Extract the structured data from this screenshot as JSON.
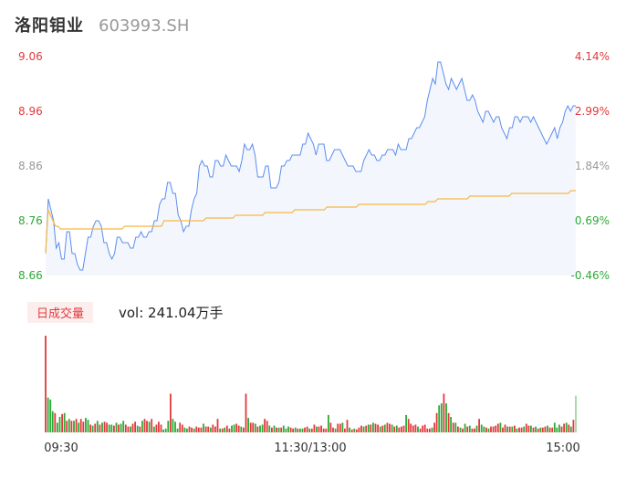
{
  "header": {
    "name": "洛阳钼业",
    "code": "603993.SH"
  },
  "vol_panel": {
    "tab_label": "日成交量",
    "vol_label": "vol: 241.04万手"
  },
  "colors": {
    "up": "#e4393c",
    "down": "#2bab35",
    "price_line": "#5b8def",
    "avg_line": "#f5b942",
    "neutral_text": "#999999"
  },
  "chart_data": [
    {
      "type": "line",
      "x_ticks": [
        "09:30",
        "11:30/13:00",
        "15:00"
      ],
      "ylim": [
        8.66,
        9.06
      ],
      "y_ticks_left": [
        "9.06",
        "8.96",
        "8.86",
        "8.76",
        "8.66"
      ],
      "y_ticks_right": [
        "4.14%",
        "2.99%",
        "1.84%",
        "0.69%",
        "-0.46%"
      ],
      "series": [
        {
          "key": "price",
          "values": [
            8.7,
            8.8,
            8.78,
            8.76,
            8.71,
            8.72,
            8.69,
            8.69,
            8.74,
            8.74,
            8.7,
            8.7,
            8.68,
            8.67,
            8.67,
            8.7,
            8.73,
            8.73,
            8.75,
            8.76,
            8.76,
            8.75,
            8.72,
            8.72,
            8.7,
            8.69,
            8.7,
            8.73,
            8.73,
            8.72,
            8.72,
            8.72,
            8.71,
            8.71,
            8.73,
            8.73,
            8.74,
            8.73,
            8.73,
            8.74,
            8.74,
            8.76,
            8.76,
            8.79,
            8.8,
            8.8,
            8.83,
            8.83,
            8.81,
            8.81,
            8.77,
            8.76,
            8.74,
            8.75,
            8.75,
            8.78,
            8.8,
            8.81,
            8.86,
            8.87,
            8.86,
            8.86,
            8.84,
            8.84,
            8.87,
            8.87,
            8.86,
            8.86,
            8.88,
            8.87,
            8.86,
            8.86,
            8.86,
            8.85,
            8.87,
            8.9,
            8.89,
            8.89,
            8.9,
            8.88,
            8.84,
            8.84,
            8.84,
            8.86,
            8.86,
            8.82,
            8.82,
            8.82,
            8.83,
            8.86,
            8.86,
            8.87,
            8.87,
            8.88,
            8.88,
            8.88,
            8.88,
            8.9,
            8.9,
            8.92,
            8.91,
            8.9,
            8.88,
            8.9,
            8.9,
            8.9,
            8.87,
            8.87,
            8.88,
            8.89,
            8.89,
            8.89,
            8.88,
            8.87,
            8.86,
            8.86,
            8.86,
            8.85,
            8.85,
            8.85,
            8.87,
            8.88,
            8.89,
            8.88,
            8.88,
            8.87,
            8.87,
            8.88,
            8.88,
            8.89,
            8.89,
            8.89,
            8.88,
            8.9,
            8.89,
            8.89,
            8.89,
            8.91,
            8.91,
            8.92,
            8.93,
            8.93,
            8.94,
            8.95,
            8.98,
            9.0,
            9.02,
            9.01,
            9.05,
            9.05,
            9.03,
            9.01,
            9.0,
            9.02,
            9.01,
            9.0,
            9.01,
            9.02,
            9.0,
            8.98,
            8.98,
            8.99,
            8.98,
            8.96,
            8.95,
            8.94,
            8.96,
            8.96,
            8.95,
            8.94,
            8.95,
            8.95,
            8.93,
            8.92,
            8.91,
            8.93,
            8.93,
            8.95,
            8.95,
            8.94,
            8.95,
            8.95,
            8.95,
            8.94,
            8.95,
            8.94,
            8.93,
            8.92,
            8.91,
            8.9,
            8.91,
            8.92,
            8.93,
            8.91,
            8.93,
            8.94,
            8.96,
            8.97,
            8.96,
            8.97,
            8.97
          ]
        },
        {
          "key": "avg",
          "values": [
            8.7,
            8.78,
            8.77,
            8.76,
            8.75,
            8.75,
            8.745,
            8.745,
            8.745,
            8.745,
            8.745,
            8.745,
            8.745,
            8.745,
            8.745,
            8.745,
            8.745,
            8.745,
            8.745,
            8.745,
            8.745,
            8.745,
            8.745,
            8.745,
            8.745,
            8.745,
            8.745,
            8.745,
            8.745,
            8.745,
            8.745,
            8.745,
            8.75,
            8.75,
            8.75,
            8.75,
            8.75,
            8.75,
            8.75,
            8.75,
            8.75,
            8.75,
            8.75,
            8.75,
            8.75,
            8.75,
            8.75,
            8.75,
            8.76,
            8.76,
            8.76,
            8.76,
            8.76,
            8.76,
            8.76,
            8.76,
            8.76,
            8.76,
            8.76,
            8.76,
            8.76,
            8.76,
            8.76,
            8.76,
            8.76,
            8.765,
            8.765,
            8.765,
            8.765,
            8.765,
            8.765,
            8.765,
            8.765,
            8.765,
            8.765,
            8.765,
            8.765,
            8.77,
            8.77,
            8.77,
            8.77,
            8.77,
            8.77,
            8.77,
            8.77,
            8.77,
            8.77,
            8.77,
            8.77,
            8.775,
            8.775,
            8.775,
            8.775,
            8.775,
            8.775,
            8.775,
            8.775,
            8.775,
            8.775,
            8.775,
            8.775,
            8.78,
            8.78,
            8.78,
            8.78,
            8.78,
            8.78,
            8.78,
            8.78,
            8.78,
            8.78,
            8.78,
            8.78,
            8.78,
            8.785,
            8.785,
            8.785,
            8.785,
            8.785,
            8.785,
            8.785,
            8.785,
            8.785,
            8.785,
            8.785,
            8.785,
            8.785,
            8.79,
            8.79,
            8.79,
            8.79,
            8.79,
            8.79,
            8.79,
            8.79,
            8.79,
            8.79,
            8.79,
            8.79,
            8.79,
            8.79,
            8.79,
            8.79,
            8.79,
            8.79,
            8.79,
            8.79,
            8.79,
            8.79,
            8.79,
            8.79,
            8.79,
            8.79,
            8.79,
            8.79,
            8.795,
            8.795,
            8.795,
            8.795,
            8.8,
            8.8,
            8.8,
            8.8,
            8.8,
            8.8,
            8.8,
            8.8,
            8.8,
            8.8,
            8.8,
            8.8,
            8.8,
            8.805,
            8.805,
            8.805,
            8.805,
            8.805,
            8.805,
            8.805,
            8.805,
            8.805,
            8.805,
            8.805,
            8.805,
            8.805,
            8.805,
            8.805,
            8.805,
            8.805,
            8.81,
            8.81,
            8.81,
            8.81,
            8.81,
            8.81,
            8.81,
            8.81,
            8.81,
            8.81,
            8.81,
            8.81,
            8.81,
            8.81,
            8.81,
            8.81,
            8.81,
            8.81,
            8.81,
            8.81,
            8.81,
            8.81,
            8.81,
            8.81,
            8.815,
            8.815,
            8.815
          ]
        }
      ]
    },
    {
      "type": "bar",
      "series": [
        {
          "key": "volume",
          "values": [
            100,
            36,
            34,
            22,
            20,
            10,
            16,
            19,
            20,
            12,
            14,
            12,
            12,
            14,
            10,
            14,
            11,
            15,
            13,
            8,
            7,
            9,
            12,
            8,
            10,
            11,
            10,
            8,
            8,
            7,
            10,
            8,
            9,
            12,
            8,
            6,
            6,
            9,
            11,
            7,
            6,
            12,
            14,
            12,
            11,
            14,
            6,
            8,
            11,
            8,
            3,
            4,
            12,
            40,
            14,
            11,
            4,
            10,
            8,
            5,
            4,
            6,
            5,
            4,
            6,
            5,
            5,
            9,
            6,
            6,
            5,
            8,
            6,
            14,
            4,
            4,
            5,
            7,
            4,
            7,
            8,
            9,
            7,
            6,
            5,
            40,
            15,
            10,
            10,
            9,
            6,
            7,
            8,
            14,
            12,
            7,
            5,
            7,
            5,
            5,
            5,
            7,
            4,
            6,
            5,
            4,
            5,
            4,
            4,
            4,
            5,
            6,
            4,
            4,
            8,
            6,
            6,
            7,
            4,
            4,
            18,
            10,
            5,
            4,
            9,
            9,
            10,
            4,
            13,
            5,
            3,
            4,
            3,
            5,
            7,
            6,
            7,
            8,
            8,
            10,
            9,
            8,
            6,
            7,
            8,
            10,
            9,
            8,
            6,
            7,
            5,
            6,
            7,
            18,
            14,
            9,
            7,
            8,
            6,
            4,
            7,
            8,
            4,
            4,
            5,
            10,
            20,
            28,
            30,
            40,
            30,
            20,
            16,
            10,
            10,
            6,
            5,
            4,
            9,
            6,
            7,
            4,
            4,
            7,
            14,
            8,
            6,
            5,
            4,
            6,
            6,
            7,
            9,
            10,
            5,
            8,
            6,
            6,
            6,
            7,
            4,
            5,
            5,
            6,
            9,
            7,
            7,
            5,
            6,
            4,
            5,
            5,
            6,
            7,
            5,
            5,
            10,
            5,
            8,
            6,
            9,
            10,
            8,
            6,
            13,
            38
          ]
        },
        {
          "key": "direction",
          "values": [
            1,
            -1,
            -1,
            -1,
            1,
            -1,
            -1,
            1,
            -1,
            1,
            -1,
            1,
            -1,
            1,
            -1,
            1,
            1,
            -1,
            -1,
            1,
            -1,
            1,
            -1,
            1,
            -1,
            1,
            1,
            -1,
            -1,
            1,
            -1,
            1,
            -1,
            -1,
            1,
            1,
            -1,
            1,
            1,
            -1,
            1,
            -1,
            1,
            1,
            -1,
            1,
            -1,
            1,
            1,
            1,
            -1,
            -1,
            -1,
            1,
            -1,
            -1,
            -1,
            1,
            1,
            -1,
            -1,
            1,
            1,
            -1,
            1,
            1,
            1,
            -1,
            1,
            1,
            -1,
            1,
            1,
            1,
            -1,
            1,
            -1,
            1,
            1,
            -1,
            -1,
            1,
            1,
            -1,
            1,
            1,
            -1,
            1,
            1,
            -1,
            1,
            -1,
            -1,
            1,
            1,
            -1,
            1,
            -1,
            1,
            -1,
            1,
            -1,
            -1,
            -1,
            1,
            1,
            -1,
            1,
            -1,
            -1,
            1,
            1,
            -1,
            1,
            1,
            -1,
            1,
            1,
            1,
            1,
            -1,
            1,
            1,
            -1,
            1,
            1,
            -1,
            1,
            1,
            -1,
            1,
            -1,
            1,
            1,
            1,
            -1,
            1,
            -1,
            1,
            -1,
            1,
            1,
            -1,
            1,
            -1,
            1,
            1,
            -1,
            1,
            -1,
            1,
            1,
            1,
            -1,
            1,
            1,
            1,
            1,
            -1,
            1,
            1,
            1,
            1,
            1,
            -1,
            1,
            1,
            -1,
            -1,
            1,
            -1,
            1,
            -1,
            1,
            -1,
            1,
            -1,
            1,
            -1,
            1,
            -1,
            1,
            1,
            -1,
            1,
            -1,
            -1,
            1,
            -1,
            1,
            1,
            1,
            1,
            -1,
            1,
            1,
            -1,
            1,
            -1,
            1,
            -1,
            1,
            1,
            -1,
            1,
            1,
            -1,
            1,
            -1,
            1,
            -1,
            1,
            1,
            -1,
            1,
            1,
            -1,
            -1,
            -1,
            1,
            1,
            -1,
            1,
            -1,
            1,
            -1,
            1,
            1,
            1,
            -1,
            1,
            1,
            1
          ]
        }
      ]
    }
  ]
}
